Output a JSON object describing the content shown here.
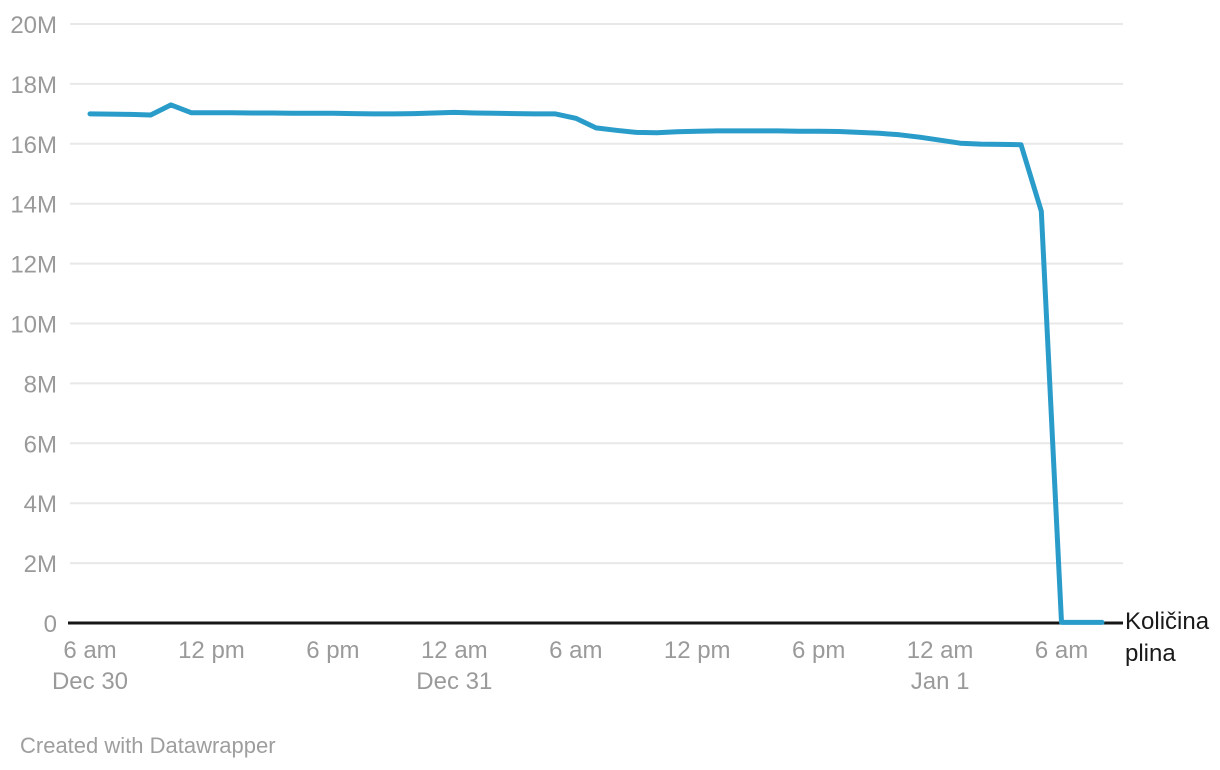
{
  "chart_data": {
    "type": "line",
    "title": "",
    "xlabel": "",
    "ylabel": "",
    "series_label": "Količina plina",
    "line_color": "#299cca",
    "grid": true,
    "ylim": [
      0,
      20000000
    ],
    "xlim_hours": [
      0,
      50
    ],
    "x_axis_note": "hours from Dec 30 6 am to Jan 1 8 am",
    "y_ticks": [
      {
        "value": 0,
        "label": "0"
      },
      {
        "value": 2000000,
        "label": "2M"
      },
      {
        "value": 4000000,
        "label": "4M"
      },
      {
        "value": 6000000,
        "label": "6M"
      },
      {
        "value": 8000000,
        "label": "8M"
      },
      {
        "value": 10000000,
        "label": "10M"
      },
      {
        "value": 12000000,
        "label": "12M"
      },
      {
        "value": 14000000,
        "label": "14M"
      },
      {
        "value": 16000000,
        "label": "16M"
      },
      {
        "value": 18000000,
        "label": "18M"
      },
      {
        "value": 20000000,
        "label": "20M"
      }
    ],
    "x_ticks": [
      {
        "t": 0,
        "label": "6 am",
        "sublabel": "Dec 30"
      },
      {
        "t": 6,
        "label": "12 pm",
        "sublabel": ""
      },
      {
        "t": 12,
        "label": "6 pm",
        "sublabel": ""
      },
      {
        "t": 18,
        "label": "12 am",
        "sublabel": "Dec 31"
      },
      {
        "t": 24,
        "label": "6 am",
        "sublabel": ""
      },
      {
        "t": 30,
        "label": "12 pm",
        "sublabel": ""
      },
      {
        "t": 36,
        "label": "6 pm",
        "sublabel": ""
      },
      {
        "t": 42,
        "label": "12 am",
        "sublabel": "Jan 1"
      },
      {
        "t": 48,
        "label": "6 am",
        "sublabel": ""
      }
    ],
    "points": [
      [
        0,
        17000000
      ],
      [
        1,
        16990000
      ],
      [
        2,
        16980000
      ],
      [
        3,
        16960000
      ],
      [
        4,
        17300000
      ],
      [
        5,
        17040000
      ],
      [
        6,
        17040000
      ],
      [
        7,
        17040000
      ],
      [
        8,
        17030000
      ],
      [
        9,
        17030000
      ],
      [
        10,
        17020000
      ],
      [
        11,
        17020000
      ],
      [
        12,
        17020000
      ],
      [
        13,
        17010000
      ],
      [
        14,
        17000000
      ],
      [
        15,
        17000000
      ],
      [
        16,
        17010000
      ],
      [
        17,
        17030000
      ],
      [
        18,
        17050000
      ],
      [
        19,
        17030000
      ],
      [
        20,
        17020000
      ],
      [
        21,
        17010000
      ],
      [
        22,
        17000000
      ],
      [
        23,
        17000000
      ],
      [
        24,
        16850000
      ],
      [
        25,
        16530000
      ],
      [
        26,
        16450000
      ],
      [
        27,
        16380000
      ],
      [
        28,
        16370000
      ],
      [
        29,
        16400000
      ],
      [
        30,
        16420000
      ],
      [
        31,
        16430000
      ],
      [
        32,
        16430000
      ],
      [
        33,
        16430000
      ],
      [
        34,
        16430000
      ],
      [
        35,
        16420000
      ],
      [
        36,
        16420000
      ],
      [
        37,
        16410000
      ],
      [
        38,
        16380000
      ],
      [
        39,
        16350000
      ],
      [
        40,
        16300000
      ],
      [
        41,
        16220000
      ],
      [
        42,
        16120000
      ],
      [
        43,
        16020000
      ],
      [
        44,
        15990000
      ],
      [
        45,
        15980000
      ],
      [
        46,
        15970000
      ],
      [
        47,
        13750000
      ],
      [
        48,
        20000
      ],
      [
        49,
        20000
      ],
      [
        50,
        20000
      ]
    ],
    "colors": {
      "gridline": "#e8e8e8",
      "axis": "#161616",
      "tick_label": "#9a9a9a",
      "annotation_text": "#1a1a1a"
    }
  },
  "footer": {
    "credit": "Created with Datawrapper"
  }
}
